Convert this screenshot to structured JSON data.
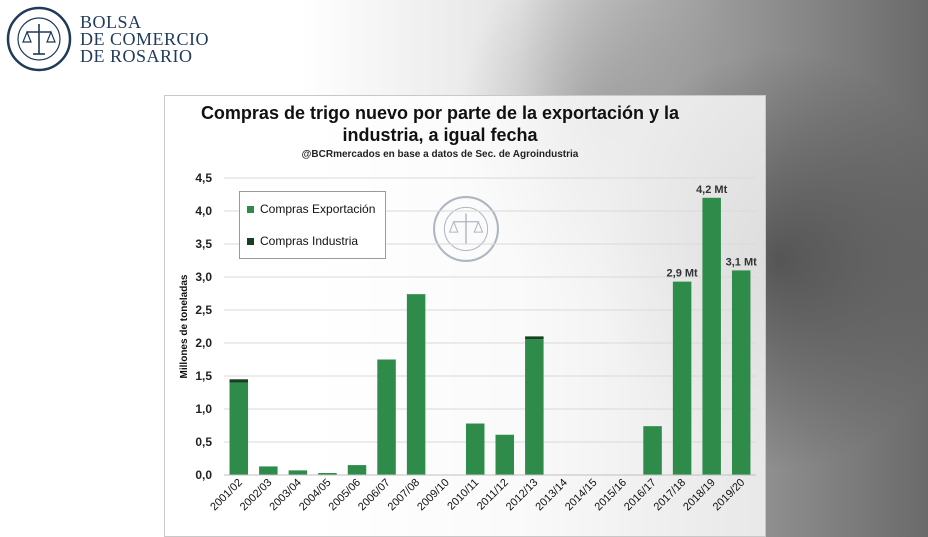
{
  "header": {
    "brand_line1": "BOLSA",
    "brand_line2": "DE COMERCIO",
    "brand_line3": "DE ROSARIO",
    "seal_text": "BOLSA DE COMERCIO DE ROSARIO"
  },
  "colors": {
    "export": "#2e8b4a",
    "industry": "#173f22",
    "brand": "#1f3a5a"
  },
  "chart_data": {
    "type": "bar",
    "stacked": true,
    "title_line1": "Compras de trigo nuevo por parte de la exportación y la",
    "title_line2": "industria, a igual fecha",
    "subtitle": "@BCRmercados en base a datos de Sec. de Agroindustria",
    "xlabel": "",
    "ylabel": "Millones de toneladas",
    "ylim": [
      0,
      4.5
    ],
    "yticks": [
      "0,0",
      "0,5",
      "1,0",
      "1,5",
      "2,0",
      "2,5",
      "3,0",
      "3,5",
      "4,0",
      "4,5"
    ],
    "legend_position": "top-left",
    "grid": true,
    "categories": [
      "2001/02",
      "2002/03",
      "2003/04",
      "2004/05",
      "2005/06",
      "2006/07",
      "2007/08",
      "2009/10",
      "2010/11",
      "2011/12",
      "2012/13",
      "2013/14",
      "2014/15",
      "2015/16",
      "2016/17",
      "2017/18",
      "2018/19",
      "2019/20"
    ],
    "series": [
      {
        "name": "Compras Exportación",
        "values": [
          1.4,
          0.13,
          0.07,
          0.03,
          0.15,
          1.75,
          2.74,
          0.0,
          0.78,
          0.61,
          2.06,
          0.0,
          0.0,
          0.0,
          0.74,
          2.93,
          4.2,
          3.1
        ]
      },
      {
        "name": "Compras Industria",
        "values": [
          0.05,
          0.0,
          0.0,
          0.0,
          0.0,
          0.0,
          0.0,
          0.0,
          0.0,
          0.0,
          0.04,
          0.0,
          0.0,
          0.0,
          0.0,
          0.0,
          0.0,
          0.0
        ]
      }
    ],
    "annotations": [
      {
        "category": "2017/18",
        "text": "2,9 Mt"
      },
      {
        "category": "2018/19",
        "text": "4,2 Mt"
      },
      {
        "category": "2019/20",
        "text": "3,1 Mt"
      }
    ]
  }
}
